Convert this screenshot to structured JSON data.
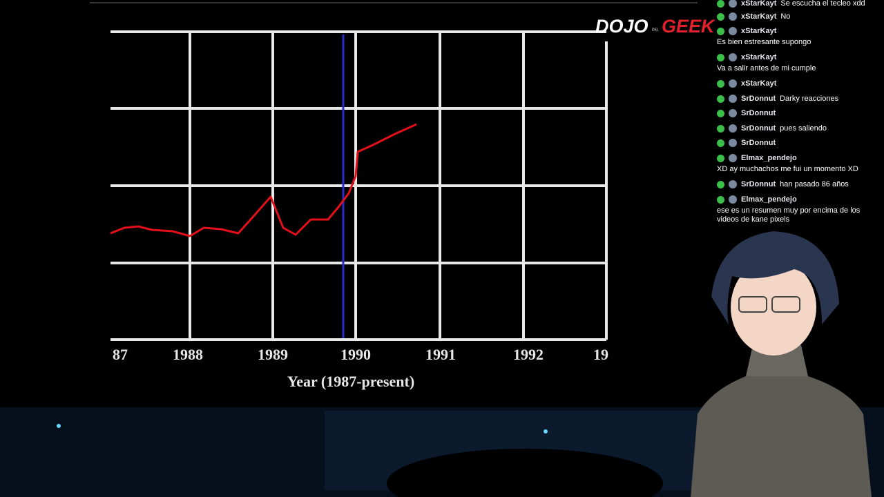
{
  "video": {
    "x_tick_labels": [
      "87",
      "1988",
      "1989",
      "1990",
      "1991",
      "1992",
      "19"
    ],
    "x_axis_label": "Year (1987-present)"
  },
  "logo": {
    "main": "DOJO",
    "small": "DEL",
    "accent": "GEEK"
  },
  "chat": {
    "messages": [
      {
        "user": "xStarKayt",
        "text": "Se escucha el tecleo xdd"
      },
      {
        "user": "xStarKayt",
        "text": "No"
      },
      {
        "user": "xStarKayt",
        "text": "Es bien estresante supongo"
      },
      {
        "user": "xStarKayt",
        "text": "Va a salir antes de mi cumple"
      },
      {
        "user": "xStarKayt"
      },
      {
        "user": "SrDonnut",
        "text": "Darky reacciones"
      },
      {
        "user": "SrDonnut"
      },
      {
        "user": "SrDonnut",
        "text": "pues saliendo"
      },
      {
        "user": "SrDonnut"
      },
      {
        "user": "Elmax_pendejo",
        "text": "XD ay muchachos me fui un momento XD"
      },
      {
        "user": "SrDonnut",
        "text": "han pasado 86 años"
      },
      {
        "user": "Elmax_pendejo",
        "text": "ese es un resumen muy por encima de los videos de kane pixels"
      }
    ]
  }
}
